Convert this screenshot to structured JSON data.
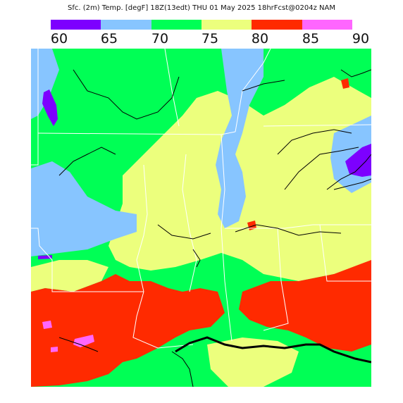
{
  "title": "Sfc. (2m) Temp. [degF] 18Z(13edt) THU 01 May 2025 18hrFcst@0204z NAM",
  "legend": {
    "labels": [
      "60",
      "65",
      "70",
      "75",
      "80",
      "85",
      "90"
    ],
    "colors": [
      "#7d00ff",
      "#87c5ff",
      "#00ff55",
      "#ecff7d",
      "#ff2a00",
      "#ff66ff"
    ]
  },
  "map": {
    "colors": {
      "purple": "#7d00ff",
      "light_blue": "#87c5ff",
      "green": "#00ff55",
      "yellow": "#ecff7d",
      "red": "#ff2a00",
      "pink": "#ff66ff",
      "border": "#ffffff",
      "contour": "#000000"
    }
  }
}
